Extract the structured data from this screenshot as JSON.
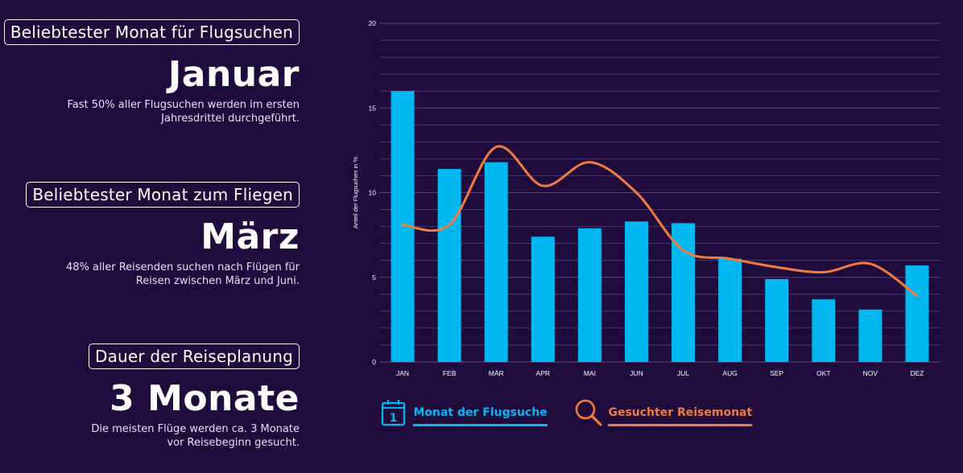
{
  "panels": [
    {
      "badge": "Beliebtester Monat für Flugsuchen",
      "value": "Januar",
      "line1": "Fast 50% aller Flugsuchen werden im ersten",
      "line2": "Jahresdrittel durchgeführt."
    },
    {
      "badge": "Beliebtester Monat zum Fliegen",
      "value": "März",
      "line1": "48% aller Reisenden suchen nach Flügen für",
      "line2": "Reisen zwischen März und Juni."
    },
    {
      "badge": "Dauer der Reiseplanung",
      "value": "3 Monate",
      "line1": "Die meisten Flüge werden ca. 3 Monate",
      "line2": "vor Reisebeginn gesucht."
    }
  ],
  "legend": {
    "bars_label": "Monat der Flugsuche",
    "line_label": "Gesuchter Reisemonat",
    "bars_icon": "calendar-icon",
    "line_icon": "magnifier-icon",
    "calendar_day": "1"
  },
  "colors": {
    "background": "#1f0c3d",
    "bar": "#00b7f1",
    "line": "#f07c3f",
    "grid": "#5d4e80",
    "text": "#ffffff"
  },
  "chart_data": {
    "type": "bar",
    "categories": [
      "JAN",
      "FEB",
      "MÄR",
      "APR",
      "MAI",
      "JUN",
      "JUL",
      "AUG",
      "SEP",
      "OKT",
      "NOV",
      "DEZ"
    ],
    "series": [
      {
        "name": "Monat der Flugsuche",
        "type": "bar",
        "values": [
          16,
          11.4,
          11.8,
          7.4,
          7.9,
          8.3,
          8.2,
          6.1,
          4.9,
          3.7,
          3.1,
          5.7
        ]
      },
      {
        "name": "Gesuchter Reisemonat",
        "type": "line",
        "values": [
          8.1,
          8.1,
          12.7,
          10.4,
          11.8,
          10,
          6.6,
          6.1,
          5.6,
          5.3,
          5.8,
          3.9
        ]
      }
    ],
    "ylabel": "Anteil der Flugsuchen in %",
    "ylim": [
      0,
      20
    ],
    "yticks": [
      "0",
      "5",
      "10",
      "15",
      "20"
    ],
    "grid": true
  }
}
